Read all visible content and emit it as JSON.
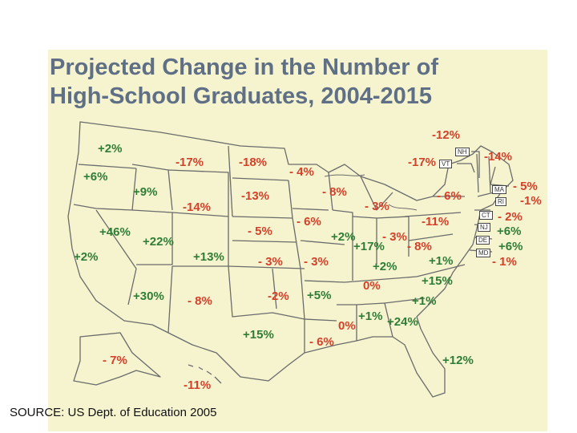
{
  "title": {
    "line1": "Projected Change in the Number of",
    "line2": "High-School Graduates, 2004-2015"
  },
  "source": "SOURCE: US Dept. of Education 2005",
  "colors": {
    "increase": "#2f7d36",
    "decrease": "#d5402a",
    "neutral": "#d5402a",
    "background": "#f6f4cf",
    "title": "#5e6f86"
  },
  "states": [
    {
      "state": "WA",
      "value": "+2%",
      "trend": "increase"
    },
    {
      "state": "OR",
      "value": "+6%",
      "trend": "increase"
    },
    {
      "state": "CA",
      "value": "+2%",
      "trend": "increase"
    },
    {
      "state": "NV",
      "value": "+46%",
      "trend": "increase"
    },
    {
      "state": "ID",
      "value": "+9%",
      "trend": "increase"
    },
    {
      "state": "MT",
      "value": "-17%",
      "trend": "decrease"
    },
    {
      "state": "WY",
      "value": "-14%",
      "trend": "decrease"
    },
    {
      "state": "UT",
      "value": "+22%",
      "trend": "increase"
    },
    {
      "state": "AZ",
      "value": "+30%",
      "trend": "increase"
    },
    {
      "state": "CO",
      "value": "+13%",
      "trend": "increase"
    },
    {
      "state": "NM",
      "value": "- 8%",
      "trend": "decrease"
    },
    {
      "state": "ND",
      "value": "-18%",
      "trend": "decrease"
    },
    {
      "state": "SD",
      "value": "-13%",
      "trend": "decrease"
    },
    {
      "state": "NE",
      "value": "- 5%",
      "trend": "decrease"
    },
    {
      "state": "KS",
      "value": "- 3%",
      "trend": "decrease"
    },
    {
      "state": "OK",
      "value": "-2%",
      "trend": "decrease"
    },
    {
      "state": "TX",
      "value": "+15%",
      "trend": "increase"
    },
    {
      "state": "MN",
      "value": "- 4%",
      "trend": "decrease"
    },
    {
      "state": "IA",
      "value": "- 6%",
      "trend": "decrease"
    },
    {
      "state": "MO",
      "value": "- 3%",
      "trend": "decrease"
    },
    {
      "state": "AR",
      "value": "+5%",
      "trend": "increase"
    },
    {
      "state": "LA",
      "value": "- 6%",
      "trend": "decrease"
    },
    {
      "state": "WI",
      "value": "- 8%",
      "trend": "decrease"
    },
    {
      "state": "MI",
      "value": "- 3%",
      "trend": "decrease"
    },
    {
      "state": "IL",
      "value": "+2%",
      "trend": "increase"
    },
    {
      "state": "IN",
      "value": "+17%",
      "trend": "increase"
    },
    {
      "state": "OH",
      "value": "- 3%",
      "trend": "decrease"
    },
    {
      "state": "KY",
      "value": "+2%",
      "trend": "increase"
    },
    {
      "state": "TN",
      "value": "0%",
      "trend": "neutral"
    },
    {
      "state": "MS",
      "value": "0%",
      "trend": "neutral"
    },
    {
      "state": "AL",
      "value": "+1%",
      "trend": "increase"
    },
    {
      "state": "GA",
      "value": "+24%",
      "trend": "increase"
    },
    {
      "state": "FL",
      "value": "+12%",
      "trend": "increase"
    },
    {
      "state": "SC",
      "value": "+1%",
      "trend": "increase"
    },
    {
      "state": "NC",
      "value": "+15%",
      "trend": "increase"
    },
    {
      "state": "VA",
      "value": "+1%",
      "trend": "increase"
    },
    {
      "state": "WV",
      "value": "- 8%",
      "trend": "decrease"
    },
    {
      "state": "PA",
      "value": "-11%",
      "trend": "decrease"
    },
    {
      "state": "NY",
      "value": "- 6%",
      "trend": "decrease"
    },
    {
      "state": "ME",
      "value": "-14%",
      "trend": "decrease"
    },
    {
      "state": "AK",
      "value": "- 7%",
      "trend": "decrease"
    },
    {
      "state": "HI",
      "value": "-11%",
      "trend": "decrease"
    }
  ],
  "northeast": [
    {
      "abbr": "NH",
      "value": "-12%",
      "trend": "decrease"
    },
    {
      "abbr": "VT",
      "value": "-17%",
      "trend": "decrease"
    },
    {
      "abbr": "MA",
      "value": "- 5%",
      "trend": "decrease"
    },
    {
      "abbr": "RI",
      "value": "-1%",
      "trend": "decrease"
    },
    {
      "abbr": "CT",
      "value": "- 2%",
      "trend": "decrease"
    },
    {
      "abbr": "NJ",
      "value": "+6%",
      "trend": "increase"
    },
    {
      "abbr": "DE",
      "value": "+6%",
      "trend": "increase"
    },
    {
      "abbr": "MD",
      "value": "- 1%",
      "trend": "decrease"
    }
  ]
}
